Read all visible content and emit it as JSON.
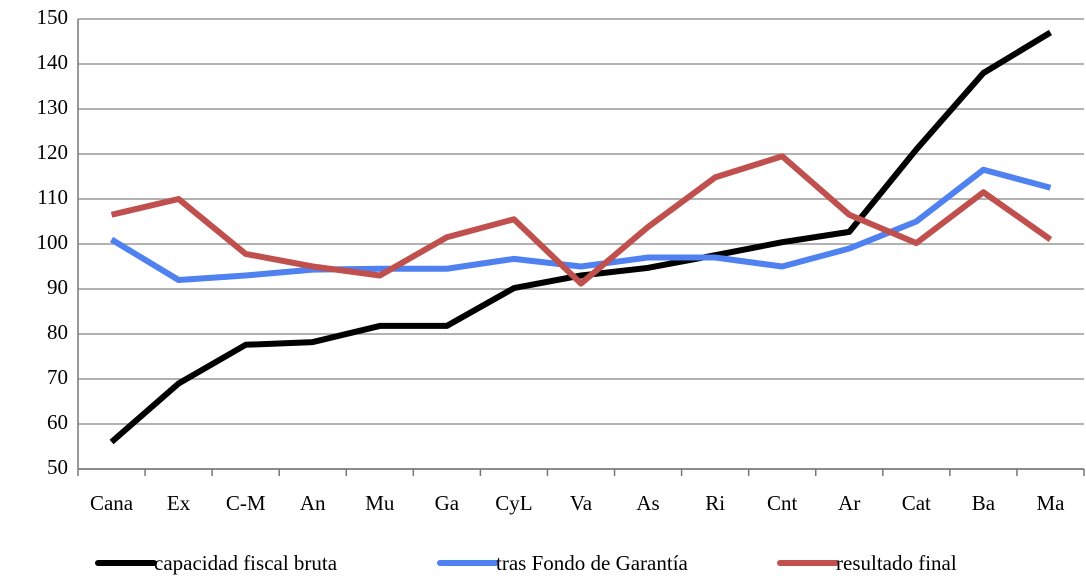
{
  "chart_data": {
    "type": "line",
    "categories": [
      "Cana",
      "Ex",
      "C-M",
      "An",
      "Mu",
      "Ga",
      "CyL",
      "Va",
      "As",
      "Ri",
      "Cnt",
      "Ar",
      "Cat",
      "Ba",
      "Ma"
    ],
    "series": [
      {
        "name": "capacidad fiscal bruta",
        "color": "#000000",
        "values": [
          56,
          69,
          77.6,
          78.2,
          81.8,
          81.8,
          90.2,
          93,
          94.7,
          97.5,
          100.4,
          102.7,
          121,
          138,
          147
        ]
      },
      {
        "name": "tras Fondo de Garantía",
        "color": "#4f81f0",
        "values": [
          101,
          92,
          93,
          94.3,
          94.5,
          94.5,
          96.7,
          95,
          97,
          97,
          95,
          99,
          105,
          116.5,
          112.5
        ]
      },
      {
        "name": "resultado final",
        "color": "#c0504d",
        "values": [
          106.5,
          110,
          97.8,
          95,
          93,
          101.5,
          105.5,
          91.2,
          103.8,
          114.8,
          119.5,
          106.5,
          100.2,
          111.5,
          101
        ]
      }
    ],
    "ylim": [
      50,
      150
    ],
    "yticks": [
      50,
      60,
      70,
      80,
      90,
      100,
      110,
      120,
      130,
      140,
      150
    ],
    "grid": true,
    "legend": "bottom"
  }
}
